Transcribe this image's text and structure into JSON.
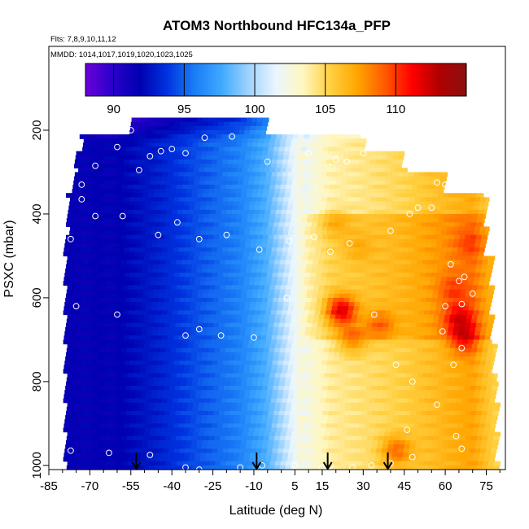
{
  "chart_data": {
    "type": "heatmap",
    "title": "ATOM3 Northbound HFC134a_PFP",
    "flights_text": "Flts: 7,8,9,10,11,12",
    "dates_text": "MMDD: 1014,1017,1019,1020,1023,1025",
    "xlabel": "Latitude (deg N)",
    "ylabel": "PSXC (mbar)",
    "xlim": [
      -85,
      82
    ],
    "ylim": [
      1010,
      0
    ],
    "y_reversed": true,
    "grid": false,
    "x_ticks": [
      -85,
      -70,
      -55,
      -40,
      -25,
      -10,
      5,
      15,
      30,
      45,
      60,
      75
    ],
    "y_ticks": [
      200,
      400,
      600,
      800,
      1000
    ],
    "colorbar": {
      "range": [
        88,
        115
      ],
      "ticks": [
        90,
        95,
        100,
        105,
        110
      ],
      "position": "top",
      "colors": [
        "#6a00d8",
        "#2a00cc",
        "#0000b0",
        "#0033e0",
        "#1a7cf6",
        "#3fa9ff",
        "#9fd3ff",
        "#eaf6ff",
        "#fff7c0",
        "#ffd040",
        "#ffa500",
        "#ff5a00",
        "#ff0000",
        "#b00000",
        "#8b1010"
      ]
    },
    "field": {
      "lat_profile": [
        [
          -75,
          91.6
        ],
        [
          -60,
          91.8
        ],
        [
          -45,
          93.0
        ],
        [
          -30,
          94.6
        ],
        [
          -15,
          96.0
        ],
        [
          -5,
          98.0
        ],
        [
          0,
          99.8
        ],
        [
          5,
          101.8
        ],
        [
          10,
          103.8
        ],
        [
          18,
          105.2
        ],
        [
          30,
          105.8
        ],
        [
          45,
          106.6
        ],
        [
          60,
          107.8
        ],
        [
          70,
          108.5
        ],
        [
          78,
          106.5
        ]
      ],
      "lat_top_by_pressure": [
        [
          170,
          -55,
          -5
        ],
        [
          210,
          -73,
          30
        ],
        [
          250,
          -75,
          45
        ],
        [
          300,
          -76,
          60
        ],
        [
          350,
          -78,
          75
        ],
        [
          450,
          -79,
          75
        ],
        [
          500,
          -79,
          77
        ],
        [
          600,
          -79,
          77
        ],
        [
          700,
          -79,
          78
        ],
        [
          800,
          -79,
          79
        ],
        [
          1010,
          -79,
          80
        ]
      ],
      "hotspots": [
        {
          "lat": 22,
          "p": 630,
          "value": 112
        },
        {
          "lat": 26,
          "p": 700,
          "value": 109
        },
        {
          "lat": 36,
          "p": 665,
          "value": 109
        },
        {
          "lat": 65,
          "p": 650,
          "value": 112
        },
        {
          "lat": 67,
          "p": 700,
          "value": 112
        },
        {
          "lat": 69,
          "p": 470,
          "value": 110
        },
        {
          "lat": 63,
          "p": 580,
          "value": 110
        },
        {
          "lat": 42,
          "p": 965,
          "value": 110
        },
        {
          "lat": 28,
          "p": 480,
          "value": 107
        },
        {
          "lat": 20,
          "p": 420,
          "value": 107
        }
      ]
    },
    "samples": [
      [
        -55,
        200
      ],
      [
        -60,
        240
      ],
      [
        -40,
        245
      ],
      [
        -28,
        218
      ],
      [
        -18,
        215
      ],
      [
        -2,
        200
      ],
      [
        -77,
        240
      ],
      [
        -68,
        285
      ],
      [
        -52,
        295
      ],
      [
        -48,
        262
      ],
      [
        -44,
        250
      ],
      [
        -35,
        255
      ],
      [
        -5,
        275
      ],
      [
        10,
        255
      ],
      [
        20,
        270
      ],
      [
        24,
        275
      ],
      [
        30,
        255
      ],
      [
        -73,
        330
      ],
      [
        -73,
        365
      ],
      [
        -68,
        405
      ],
      [
        -58,
        405
      ],
      [
        -45,
        450
      ],
      [
        -38,
        420
      ],
      [
        -30,
        460
      ],
      [
        -20,
        450
      ],
      [
        -8,
        485
      ],
      [
        3,
        465
      ],
      [
        12,
        455
      ],
      [
        18,
        490
      ],
      [
        25,
        470
      ],
      [
        -77,
        460
      ],
      [
        -75,
        620
      ],
      [
        -60,
        640
      ],
      [
        -35,
        690
      ],
      [
        -30,
        675
      ],
      [
        -22,
        690
      ],
      [
        -10,
        695
      ],
      [
        2,
        600
      ],
      [
        50,
        385
      ],
      [
        55,
        385
      ],
      [
        57,
        325
      ],
      [
        60,
        330
      ],
      [
        68,
        320
      ],
      [
        40,
        440
      ],
      [
        47,
        400
      ],
      [
        62,
        520
      ],
      [
        65,
        560
      ],
      [
        67,
        550
      ],
      [
        70,
        590
      ],
      [
        60,
        620
      ],
      [
        66,
        615
      ],
      [
        59,
        680
      ],
      [
        66,
        720
      ],
      [
        63,
        760
      ],
      [
        57,
        855
      ],
      [
        34,
        640
      ],
      [
        42,
        760
      ],
      [
        48,
        800
      ],
      [
        46,
        915
      ],
      [
        48,
        980
      ],
      [
        64,
        930
      ],
      [
        66,
        960
      ],
      [
        -77,
        965
      ],
      [
        -63,
        970
      ],
      [
        -48,
        975
      ],
      [
        -35,
        1005
      ],
      [
        -30,
        1010
      ],
      [
        -15,
        1005
      ],
      [
        -7,
        1000
      ],
      [
        5,
        1000
      ],
      [
        15,
        1005
      ],
      [
        18,
        1000
      ],
      [
        26,
        1005
      ],
      [
        33,
        1000
      ],
      [
        40,
        995
      ]
    ],
    "arrows_lat": [
      -53,
      -9,
      17,
      39
    ]
  }
}
